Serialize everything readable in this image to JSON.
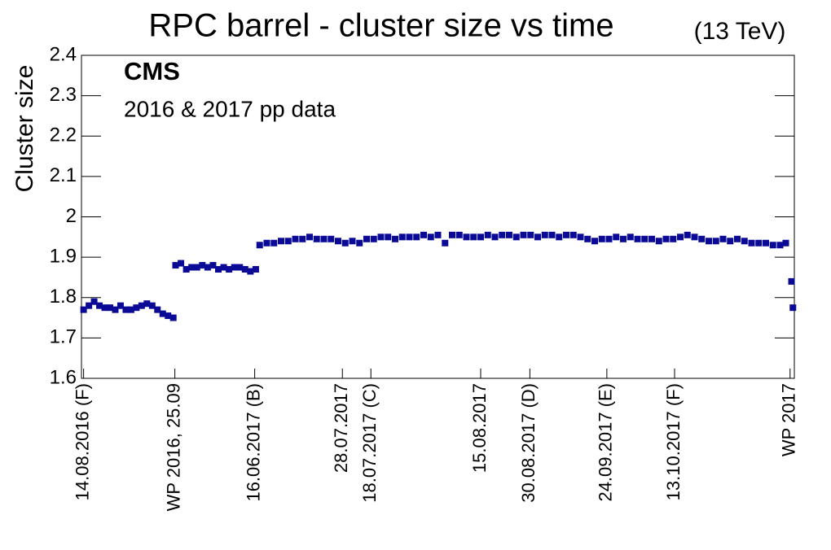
{
  "chart_data": {
    "type": "scatter",
    "title": "RPC barrel - cluster size vs time",
    "subtitle": "(13 TeV)",
    "annotations": [
      "CMS",
      "2016 & 2017 pp data"
    ],
    "y_label": "Cluster size",
    "color": "#0a0a96",
    "xlim": [
      0,
      100
    ],
    "ylim": [
      1.6,
      2.4
    ],
    "yticks": [
      1.6,
      1.7,
      1.8,
      1.9,
      2,
      2.1,
      2.2,
      2.3,
      2.4
    ],
    "xticks": [
      {
        "value": 0.3,
        "label": "14.08.2016 (F)"
      },
      {
        "value": 13.1,
        "label": "WP 2016, 25.09"
      },
      {
        "value": 24.3,
        "label": "16.06.2017 (B)"
      },
      {
        "value": 36.6,
        "label": "28.07.2017"
      },
      {
        "value": 40.6,
        "label": "18.07.2017 (C)"
      },
      {
        "value": 56,
        "label": "15.08.2017"
      },
      {
        "value": 62.9,
        "label": "30.08.2017 (D)"
      },
      {
        "value": 73.7,
        "label": "24.09.2017 (E)"
      },
      {
        "value": 83.2,
        "label": "13.10.2017 (F)"
      },
      {
        "value": 99.4,
        "label": "WP 2017"
      }
    ],
    "x": [
      0.3,
      1.04,
      1.78,
      2.52,
      3.26,
      4,
      4.74,
      5.48,
      6.22,
      6.96,
      7.7,
      8.44,
      9.18,
      9.92,
      10.66,
      11.4,
      12.14,
      12.88,
      13.2,
      13.95,
      14.7,
      15.45,
      16.2,
      16.95,
      17.7,
      18.45,
      19.2,
      19.95,
      20.7,
      21.45,
      22.2,
      22.95,
      23.7,
      24.45,
      25,
      26,
      27,
      28,
      29,
      30,
      31,
      32,
      33,
      34,
      35,
      36,
      37,
      38,
      39,
      40,
      41,
      42,
      43,
      44,
      45,
      46,
      47,
      48,
      49,
      50,
      51,
      52,
      53,
      54,
      55,
      56,
      57,
      58,
      59,
      60,
      61,
      62,
      63,
      64,
      65,
      66,
      67,
      68,
      69,
      70,
      71,
      72,
      73,
      74,
      75,
      76,
      77,
      78,
      79,
      80,
      81,
      82,
      83,
      84,
      85,
      86,
      87,
      88,
      89,
      90,
      91,
      92,
      93,
      94,
      95,
      96,
      97,
      98,
      98.8,
      99.6,
      99.8
    ],
    "values": [
      1.77,
      1.78,
      1.79,
      1.78,
      1.775,
      1.775,
      1.77,
      1.78,
      1.77,
      1.77,
      1.775,
      1.78,
      1.785,
      1.78,
      1.77,
      1.76,
      1.755,
      1.75,
      1.88,
      1.885,
      1.87,
      1.875,
      1.875,
      1.88,
      1.875,
      1.88,
      1.87,
      1.875,
      1.87,
      1.875,
      1.875,
      1.87,
      1.865,
      1.87,
      1.93,
      1.935,
      1.935,
      1.94,
      1.94,
      1.945,
      1.945,
      1.95,
      1.945,
      1.945,
      1.945,
      1.94,
      1.935,
      1.94,
      1.935,
      1.945,
      1.945,
      1.95,
      1.95,
      1.945,
      1.95,
      1.95,
      1.95,
      1.955,
      1.95,
      1.955,
      1.935,
      1.955,
      1.955,
      1.95,
      1.95,
      1.95,
      1.955,
      1.95,
      1.955,
      1.955,
      1.95,
      1.955,
      1.955,
      1.95,
      1.955,
      1.955,
      1.95,
      1.955,
      1.955,
      1.95,
      1.945,
      1.94,
      1.945,
      1.945,
      1.95,
      1.945,
      1.95,
      1.945,
      1.945,
      1.945,
      1.94,
      1.945,
      1.945,
      1.95,
      1.955,
      1.95,
      1.945,
      1.94,
      1.94,
      1.945,
      1.94,
      1.945,
      1.94,
      1.935,
      1.935,
      1.935,
      1.93,
      1.93,
      1.935,
      1.84,
      1.775
    ]
  }
}
